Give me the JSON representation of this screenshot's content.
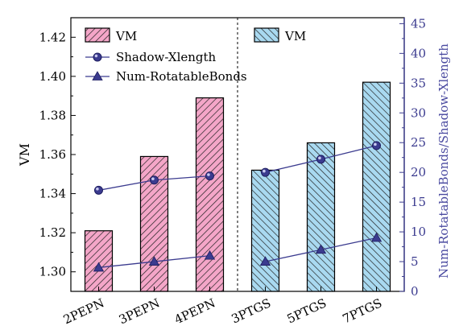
{
  "chart_data": {
    "type": "bar",
    "categories": [
      "2PEPN",
      "3PEPN",
      "4PEPN",
      "3PTGS",
      "5PTGS",
      "7PTGS"
    ],
    "ylabel": "VM",
    "y2label": "Num-RotatableBonds/Shadow-Xlength",
    "ylim": [
      1.29,
      1.43
    ],
    "y2lim": [
      0,
      46
    ],
    "yticks": [
      "1.30",
      "1.32",
      "1.34",
      "1.36",
      "1.38",
      "1.40",
      "1.42"
    ],
    "y2ticks": [
      "0",
      "5",
      "10",
      "15",
      "20",
      "25",
      "30",
      "35",
      "40",
      "45"
    ],
    "series": [
      {
        "name": "VM",
        "axis": "left",
        "kind": "bar",
        "group": "PEPN",
        "color": "#f4a6c8",
        "hatch": true,
        "values": [
          1.321,
          1.359,
          1.389,
          null,
          null,
          null
        ]
      },
      {
        "name": "VM",
        "axis": "left",
        "kind": "bar",
        "group": "PTGS",
        "color": "#a9d9f0",
        "hatch": true,
        "values": [
          null,
          null,
          null,
          1.352,
          1.366,
          1.397
        ]
      },
      {
        "name": "Shadow-Xlength",
        "axis": "right",
        "kind": "line",
        "marker": "circle",
        "color": "#3b3b8f",
        "values": [
          17.0,
          18.7,
          19.4,
          20.0,
          22.2,
          24.5
        ]
      },
      {
        "name": "Num-RotatableBonds",
        "axis": "right",
        "kind": "line",
        "marker": "triangle",
        "color": "#3b3b8f",
        "values": [
          4,
          5,
          6,
          5,
          7,
          9
        ]
      }
    ],
    "legend_left": [
      "VM",
      "Shadow-Xlength",
      "Num-RotatableBonds"
    ],
    "legend_right": [
      "VM"
    ],
    "separator": "dashed line between 4PEPN and 3PTGS",
    "grid": false
  }
}
